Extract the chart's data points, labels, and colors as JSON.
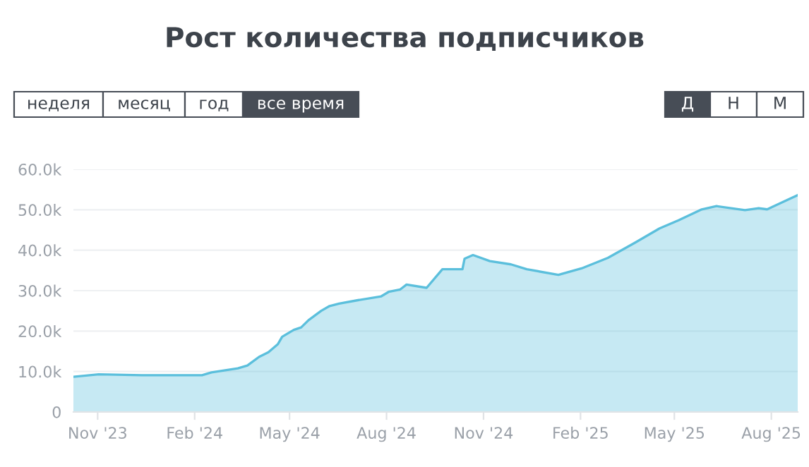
{
  "chart_data": {
    "type": "area",
    "title": "Рост количества подписчиков",
    "annotations": [
      "неделя",
      "месяц",
      "год",
      "все время",
      "Д",
      "Н",
      "М"
    ],
    "x": [
      "2023-10-09",
      "2023-11-02",
      "2023-12-13",
      "2024-02-08",
      "2024-02-17",
      "2024-03-13",
      "2024-03-22",
      "2024-04-02",
      "2024-04-11",
      "2024-04-20",
      "2024-04-24",
      "2024-05-05",
      "2024-05-12",
      "2024-05-19",
      "2024-05-31",
      "2024-06-08",
      "2024-06-17",
      "2024-07-04",
      "2024-07-27",
      "2024-08-03",
      "2024-08-14",
      "2024-08-20",
      "2024-09-08",
      "2024-09-23",
      "2024-10-12",
      "2024-10-14",
      "2024-10-22",
      "2024-11-07",
      "2024-11-27",
      "2024-12-12",
      "2025-01-11",
      "2025-02-02",
      "2025-02-27",
      "2025-03-25",
      "2025-04-17",
      "2025-05-05",
      "2025-05-27",
      "2025-06-10",
      "2025-07-07",
      "2025-07-20",
      "2025-07-28",
      "2025-08-16",
      "2025-08-26"
    ],
    "series": [
      {
        "color": "#5bbfdc",
        "values": [
          8700,
          9300,
          9100,
          9100,
          9800,
          10800,
          11500,
          13600,
          14800,
          16800,
          18600,
          20300,
          20900,
          22700,
          25000,
          26200,
          26800,
          27600,
          28600,
          29700,
          30300,
          31500,
          30700,
          35300,
          35300,
          37900,
          38800,
          37300,
          36500,
          35300,
          33900,
          35500,
          38100,
          41900,
          45400,
          47400,
          50100,
          50900,
          49900,
          50400,
          50100,
          52400,
          53600
        ]
      }
    ],
    "xlim": [
      "2023-10-09",
      "2025-08-26"
    ],
    "xticks": [
      {
        "value": "2023-11-01",
        "label": "Nov '23"
      },
      {
        "value": "2024-02-01",
        "label": "Feb '24"
      },
      {
        "value": "2024-05-01",
        "label": "May '24"
      },
      {
        "value": "2024-08-01",
        "label": "Aug '24"
      },
      {
        "value": "2024-11-01",
        "label": "Nov '24"
      },
      {
        "value": "2025-02-01",
        "label": "Feb '25"
      },
      {
        "value": "2025-05-01",
        "label": "May '25"
      },
      {
        "value": "2025-08-01",
        "label": "Aug '25"
      }
    ],
    "ylim": [
      0,
      60000
    ],
    "yticks": [
      0,
      {
        "value": 10000,
        "label": "10.0k"
      },
      {
        "value": 20000,
        "label": "20.0k"
      },
      {
        "value": 30000,
        "label": "30.0k"
      },
      {
        "value": 40000,
        "label": "40.0k"
      },
      {
        "value": 50000,
        "label": "50.0k"
      },
      {
        "value": 60000,
        "label": "60.0k"
      }
    ],
    "grid": "y"
  }
}
